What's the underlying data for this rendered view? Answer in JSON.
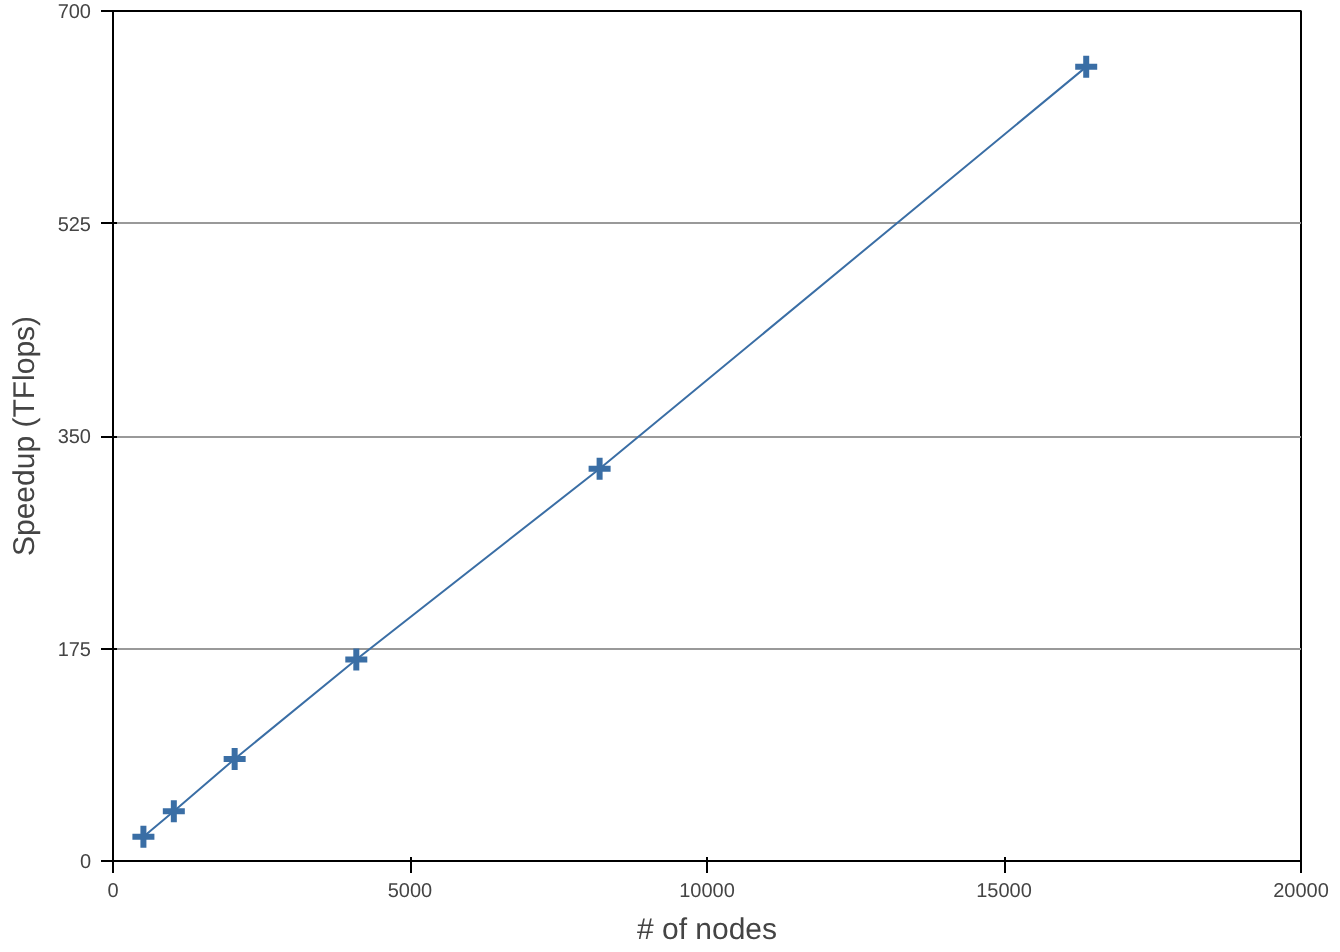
{
  "chart_data": {
    "type": "line",
    "xlabel": "# of nodes",
    "ylabel": "Speedup (TFlops)",
    "x": [
      512,
      1024,
      2048,
      4096,
      8192,
      16384
    ],
    "series": [
      {
        "color": "#3a6ea5",
        "values": [
          20,
          41,
          84,
          166,
          323,
          654
        ]
      }
    ],
    "xlim": [
      0,
      20000
    ],
    "xticks": [
      0,
      5000,
      10000,
      15000,
      20000
    ],
    "ylim": [
      0,
      700
    ],
    "yticks": [
      0,
      175,
      350,
      525,
      700
    ],
    "grid": "y",
    "marker": "cross",
    "line_style": "solid"
  }
}
